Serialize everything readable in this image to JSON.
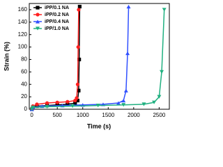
{
  "chart_data": {
    "type": "line",
    "x_label": "Time (s)",
    "y_label": "Strain (%)",
    "xlim": [
      -50,
      2700
    ],
    "xticks": [
      0,
      500,
      1000,
      1500,
      2000,
      2500
    ],
    "ylim": [
      0,
      170
    ],
    "yticks": [
      0,
      20,
      40,
      60,
      80,
      100,
      120,
      140,
      160
    ],
    "legend": "upper left",
    "series": [
      {
        "name": "iPP/0.1 NA",
        "color": "#000000",
        "marker": "square",
        "x": [
          0,
          20,
          100,
          300,
          500,
          700,
          850,
          900,
          920,
          930,
          940
        ],
        "values": [
          0,
          3,
          5,
          6,
          7,
          8,
          10,
          14,
          30,
          80,
          165
        ]
      },
      {
        "name": "iPP/0.2 NA",
        "color": "#ff2020",
        "marker": "circle",
        "x": [
          0,
          20,
          100,
          300,
          500,
          700,
          850,
          880,
          900,
          910,
          920
        ],
        "values": [
          0,
          5,
          8,
          10,
          11,
          12,
          14,
          18,
          40,
          100,
          160
        ]
      },
      {
        "name": "iPP/0.4 NA",
        "color": "#3050ff",
        "marker": "triangle",
        "x": [
          0,
          20,
          200,
          600,
          1000,
          1400,
          1700,
          1800,
          1850,
          1880,
          1900
        ],
        "values": [
          0,
          3,
          5,
          6,
          7,
          8,
          10,
          14,
          30,
          90,
          165
        ]
      },
      {
        "name": "iPP/1.0 NA",
        "color": "#20b080",
        "marker": "triangle-down",
        "x": [
          0,
          20,
          300,
          800,
          1300,
          1800,
          2200,
          2400,
          2500,
          2550,
          2600
        ],
        "values": [
          0,
          3,
          4,
          5,
          6,
          7,
          8,
          11,
          20,
          60,
          160
        ]
      }
    ]
  }
}
